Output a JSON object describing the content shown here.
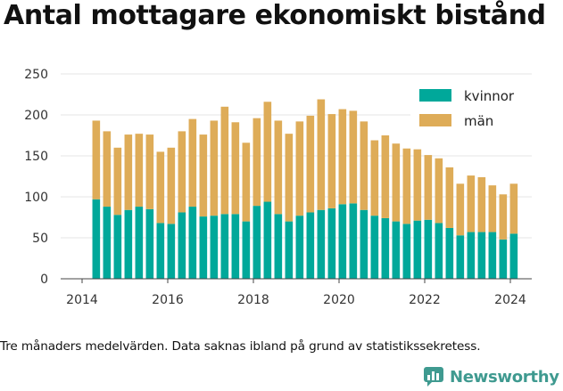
{
  "chart_data": {
    "type": "bar",
    "stacked": true,
    "title": "Antal mottagare ekonomiskt bistånd",
    "xlabel": "",
    "ylabel": "",
    "x_ticks": [
      "2014",
      "2016",
      "2018",
      "2020",
      "2022",
      "2024"
    ],
    "x_tick_values": [
      2014,
      2016,
      2018,
      2020,
      2022,
      2024
    ],
    "y_ticks": [
      0,
      50,
      100,
      150,
      200,
      250
    ],
    "ylim": [
      0,
      250
    ],
    "xlim": [
      2013.5,
      2024.5
    ],
    "grid": true,
    "legend_position": "top-right",
    "x": [
      2014.33,
      2014.58,
      2014.83,
      2015.08,
      2015.33,
      2015.58,
      2015.83,
      2016.08,
      2016.33,
      2016.58,
      2016.83,
      2017.08,
      2017.33,
      2017.58,
      2017.83,
      2018.08,
      2018.33,
      2018.58,
      2018.83,
      2019.08,
      2019.33,
      2019.58,
      2019.83,
      2020.08,
      2020.33,
      2020.58,
      2020.83,
      2021.08,
      2021.33,
      2021.58,
      2021.83,
      2022.08,
      2022.33,
      2022.58,
      2022.83,
      2023.08,
      2023.33,
      2023.58,
      2023.83,
      2024.08
    ],
    "series": [
      {
        "name": "kvinnor",
        "color": "#00a89a",
        "values": [
          97,
          88,
          78,
          84,
          88,
          85,
          68,
          67,
          81,
          88,
          76,
          77,
          79,
          79,
          70,
          89,
          94,
          79,
          70,
          77,
          81,
          84,
          86,
          91,
          92,
          84,
          77,
          74,
          70,
          67,
          71,
          72,
          68,
          62,
          53,
          57,
          57,
          57,
          48,
          55
        ]
      },
      {
        "name": "män",
        "color": "#deac58",
        "values": [
          96,
          92,
          82,
          92,
          89,
          91,
          87,
          93,
          99,
          107,
          100,
          116,
          131,
          112,
          96,
          107,
          122,
          114,
          107,
          115,
          118,
          135,
          115,
          116,
          113,
          108,
          92,
          101,
          95,
          92,
          87,
          79,
          79,
          74,
          63,
          69,
          67,
          57,
          55,
          61
        ]
      }
    ]
  },
  "caption": "Tre månaders medelvärden. Data saknas ibland på grund av statistikssekretess.",
  "brand": {
    "name": "Newsworthy",
    "color": "#3f9a90"
  }
}
